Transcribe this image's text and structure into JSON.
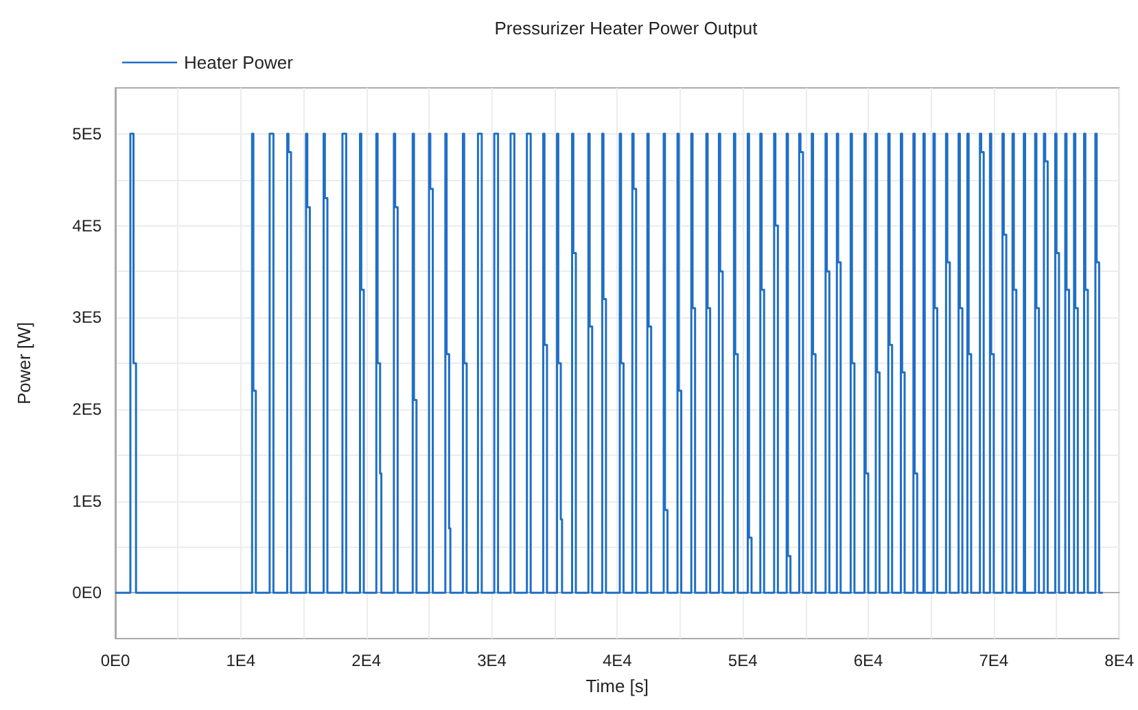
{
  "chart_data": {
    "type": "step",
    "title": "Pressurizer Heater Power Output",
    "xlabel": "Time [s]",
    "ylabel": "Power [W]",
    "xlim": [
      0,
      80000
    ],
    "xticks": [
      {
        "value": 0,
        "label": "0E0"
      },
      {
        "value": 5000,
        "label": null
      },
      {
        "value": 10000,
        "label": "1E4"
      },
      {
        "value": 15000,
        "label": null
      },
      {
        "value": 20000,
        "label": "2E4"
      },
      {
        "value": 25000,
        "label": null
      },
      {
        "value": 30000,
        "label": "3E4"
      },
      {
        "value": 35000,
        "label": null
      },
      {
        "value": 40000,
        "label": "4E4"
      },
      {
        "value": 45000,
        "label": null
      },
      {
        "value": 50000,
        "label": "5E4"
      },
      {
        "value": 55000,
        "label": null
      },
      {
        "value": 60000,
        "label": "6E4"
      },
      {
        "value": 65000,
        "label": null
      },
      {
        "value": 70000,
        "label": "7E4"
      },
      {
        "value": 75000,
        "label": null
      },
      {
        "value": 80000,
        "label": "8E4"
      }
    ],
    "ylim": [
      -50000,
      550000
    ],
    "yticks": [
      {
        "value": 0,
        "label": "0E0"
      },
      {
        "value": 50000,
        "label": null
      },
      {
        "value": 100000,
        "label": "1E5"
      },
      {
        "value": 150000,
        "label": null
      },
      {
        "value": 200000,
        "label": "2E5"
      },
      {
        "value": 250000,
        "label": null
      },
      {
        "value": 300000,
        "label": "3E5"
      },
      {
        "value": 350000,
        "label": null
      },
      {
        "value": 400000,
        "label": "4E5"
      },
      {
        "value": 450000,
        "label": null
      },
      {
        "value": 500000,
        "label": "5E5"
      }
    ],
    "grid": true,
    "legend": "top left",
    "marker": "none",
    "line_style": "solid",
    "series": [
      {
        "name": "Heater Power",
        "color": "#1f6fc5",
        "x": [
          0,
          1200,
          1450,
          1650,
          10900,
          11000,
          11200,
          12300,
          12600,
          13700,
          13800,
          14000,
          15200,
          15300,
          15500,
          16600,
          16700,
          16900,
          18100,
          18400,
          19500,
          19600,
          19800,
          20800,
          20900,
          21100,
          21200,
          22200,
          22300,
          22500,
          23700,
          23800,
          24000,
          25000,
          25100,
          25300,
          26300,
          26400,
          26600,
          26700,
          27700,
          27800,
          28000,
          28900,
          29200,
          30200,
          30500,
          31500,
          31800,
          32800,
          33100,
          34100,
          34200,
          34400,
          35200,
          35300,
          35500,
          35600,
          36400,
          36500,
          36700,
          37700,
          37800,
          38000,
          38800,
          38900,
          39100,
          40200,
          40300,
          40500,
          41200,
          41300,
          41500,
          42400,
          42500,
          42700,
          43700,
          43800,
          44000,
          44800,
          44900,
          45100,
          45900,
          46000,
          46200,
          47100,
          47200,
          47400,
          48100,
          48200,
          48400,
          49300,
          49400,
          49600,
          50400,
          50500,
          50700,
          51400,
          51500,
          51700,
          52500,
          52600,
          52800,
          53500,
          53600,
          53800,
          54500,
          54600,
          54800,
          55500,
          55600,
          55800,
          56600,
          56700,
          56900,
          57500,
          57600,
          57800,
          58600,
          58700,
          58900,
          59700,
          59800,
          60000,
          60600,
          60700,
          60900,
          61600,
          61700,
          61900,
          62600,
          62700,
          62900,
          63600,
          63700,
          63900,
          64400,
          64500,
          65200,
          65300,
          65500,
          66200,
          66300,
          66500,
          67200,
          67300,
          67500,
          67900,
          68000,
          68200,
          68900,
          69000,
          69200,
          69700,
          69800,
          70000,
          70700,
          70800,
          71000,
          71500,
          71600,
          71800,
          72400,
          72500,
          73300,
          73400,
          73600,
          74000,
          74100,
          74300,
          74900,
          75000,
          75200,
          75700,
          75800,
          76000,
          76400,
          76500,
          76700,
          77200,
          77300,
          77500,
          78100,
          78200,
          78400,
          78700
        ],
        "values": [
          0,
          500000,
          250000,
          0,
          500000,
          220000,
          0,
          500000,
          0,
          500000,
          480000,
          0,
          500000,
          420000,
          0,
          500000,
          430000,
          0,
          500000,
          0,
          500000,
          330000,
          0,
          500000,
          250000,
          130000,
          0,
          500000,
          420000,
          0,
          500000,
          210000,
          0,
          500000,
          440000,
          0,
          500000,
          260000,
          70000,
          0,
          500000,
          250000,
          0,
          500000,
          0,
          500000,
          0,
          500000,
          0,
          500000,
          0,
          500000,
          270000,
          0,
          500000,
          250000,
          80000,
          0,
          500000,
          370000,
          0,
          500000,
          290000,
          0,
          500000,
          320000,
          0,
          500000,
          250000,
          0,
          500000,
          440000,
          0,
          500000,
          290000,
          0,
          500000,
          90000,
          0,
          500000,
          220000,
          0,
          500000,
          310000,
          0,
          500000,
          310000,
          0,
          500000,
          350000,
          0,
          500000,
          260000,
          0,
          500000,
          60000,
          0,
          500000,
          330000,
          0,
          500000,
          400000,
          0,
          500000,
          40000,
          0,
          500000,
          480000,
          0,
          500000,
          260000,
          0,
          500000,
          350000,
          0,
          500000,
          360000,
          0,
          500000,
          250000,
          0,
          500000,
          130000,
          0,
          500000,
          240000,
          0,
          500000,
          270000,
          0,
          500000,
          240000,
          0,
          500000,
          130000,
          0,
          500000,
          0,
          500000,
          310000,
          0,
          500000,
          360000,
          0,
          500000,
          310000,
          0,
          500000,
          260000,
          0,
          500000,
          480000,
          0,
          500000,
          260000,
          0,
          500000,
          390000,
          0,
          500000,
          330000,
          0,
          500000,
          0,
          500000,
          310000,
          0,
          500000,
          470000,
          0,
          500000,
          370000,
          0,
          500000,
          330000,
          0,
          500000,
          310000,
          0,
          500000,
          330000,
          0,
          500000,
          360000,
          0,
          0
        ]
      }
    ]
  }
}
